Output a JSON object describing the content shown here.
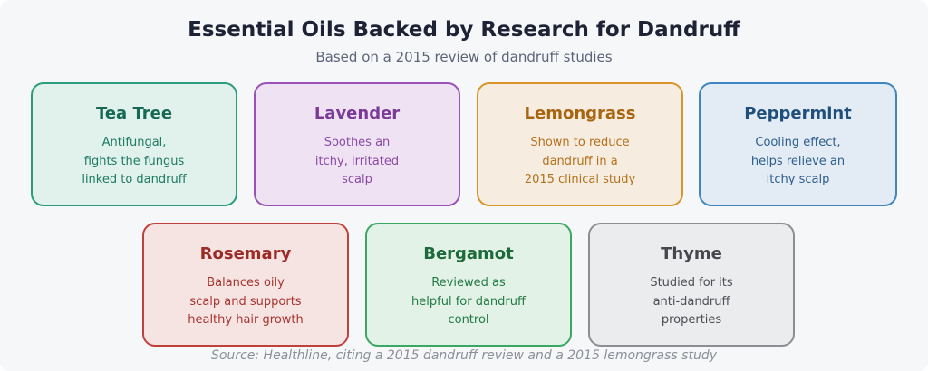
{
  "header": {
    "title": "Essential Oils Backed by Research for Dandruff",
    "subtitle": "Based on a 2015 review of dandruff studies"
  },
  "oils": [
    {
      "name": "Tea Tree",
      "desc": [
        "Antifungal,",
        "fights the fungus",
        "linked to dandruff"
      ],
      "border": "#2a9d7e",
      "bg": "#e1f1ec",
      "title_color": "#166a55",
      "text_color": "#1d7a62"
    },
    {
      "name": "Lavender",
      "desc": [
        "Soothes an",
        "itchy, irritated",
        "scalp"
      ],
      "border": "#9a52b8",
      "bg": "#efe3f3",
      "title_color": "#7b3a9a",
      "text_color": "#8a4ba6"
    },
    {
      "name": "Lemongrass",
      "desc": [
        "Shown to reduce",
        "dandruff in a",
        "2015 clinical study"
      ],
      "border": "#d9952c",
      "bg": "#f7ece0",
      "title_color": "#a8650f",
      "text_color": "#b3711c"
    },
    {
      "name": "Peppermint",
      "desc": [
        "Cooling effect,",
        "helps relieve an",
        "itchy scalp"
      ],
      "border": "#3f86c0",
      "bg": "#e3ebf4",
      "title_color": "#1f4f7a",
      "text_color": "#2c5d8c"
    },
    {
      "name": "Rosemary",
      "desc": [
        "Balances oily",
        "scalp and supports",
        "healthy hair growth"
      ],
      "border": "#c0413b",
      "bg": "#f6e4e3",
      "title_color": "#9c2a26",
      "text_color": "#a8342f"
    },
    {
      "name": "Bergamot",
      "desc": [
        "Reviewed as",
        "helpful for dandruff",
        "control"
      ],
      "border": "#3aa862",
      "bg": "#e2f2e7",
      "title_color": "#1d6b3a",
      "text_color": "#237a44"
    },
    {
      "name": "Thyme",
      "desc": [
        "Studied for its",
        "anti-dandruff",
        "properties"
      ],
      "border": "#8b8e93",
      "bg": "#ebecee",
      "title_color": "#44474d",
      "text_color": "#4b4e54"
    }
  ],
  "footer": {
    "source": "Source: Healthline, citing a 2015 dandruff review and a 2015 lemongrass study"
  }
}
